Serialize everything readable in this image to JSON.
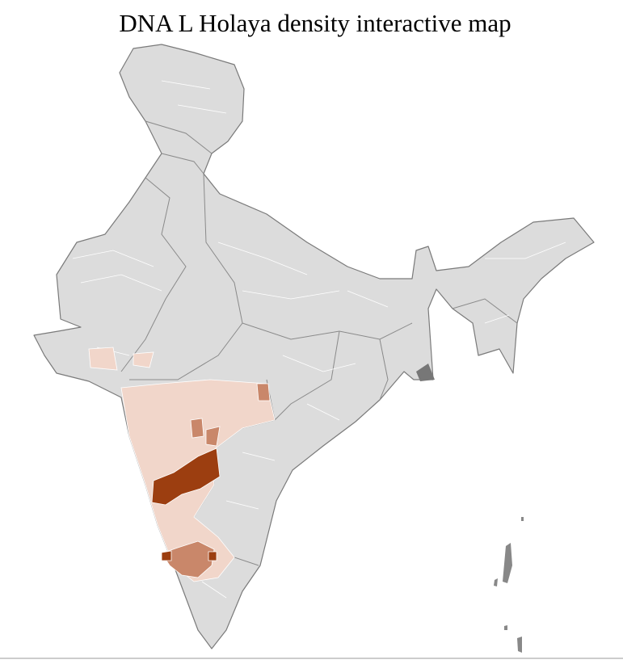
{
  "title": "DNA L Holaya density interactive map"
}
